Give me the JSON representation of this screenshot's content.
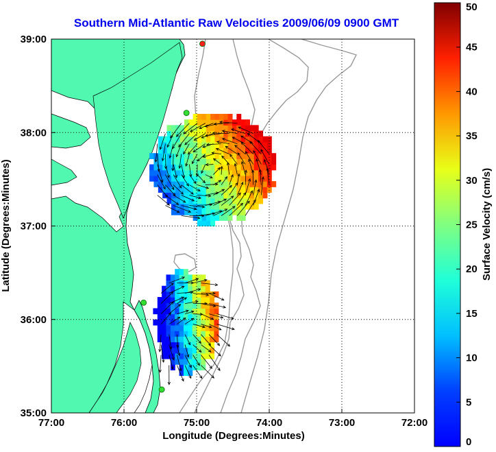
{
  "chart_data": {
    "type": "map",
    "title": "Southern Mid-Atlantic Raw Velocities 2009/06/09 0900 GMT",
    "xlabel": "Longitude (Degrees:Minutes)",
    "ylabel": "Latitude (Degrees:Minutes)",
    "x_tick_labels": [
      "77:00",
      "76:00",
      "75:00",
      "74:00",
      "73:00",
      "72:00"
    ],
    "y_tick_labels": [
      "39:00",
      "38:00",
      "37:00",
      "36:00",
      "35:00"
    ],
    "xlim": [
      -77,
      -72
    ],
    "ylim": [
      35,
      39
    ],
    "grid": true,
    "colorbar": {
      "label": "Surface Velocity (cm/s)",
      "range": [
        0,
        50
      ],
      "tick_labels": [
        "0",
        "5",
        "10",
        "15",
        "20",
        "25",
        "30",
        "35",
        "40",
        "45",
        "50"
      ]
    },
    "stations": [
      {
        "lon": -74.92,
        "lat": 38.95,
        "color": "#ff2020"
      },
      {
        "lon": -75.14,
        "lat": 38.21,
        "color": "#33dd33"
      },
      {
        "lon": -75.73,
        "lat": 36.18,
        "color": "#33dd33"
      },
      {
        "lon": -75.48,
        "lat": 35.25,
        "color": "#33dd33"
      }
    ],
    "fields": [
      {
        "name": "north",
        "center": [
          -74.8,
          37.6
        ],
        "radius": [
          0.85,
          0.6
        ],
        "vel_range": [
          8,
          45
        ]
      },
      {
        "name": "south",
        "center": [
          -75.15,
          35.95
        ],
        "radius": [
          0.45,
          0.55
        ],
        "vel_range": [
          6,
          45
        ]
      }
    ]
  }
}
